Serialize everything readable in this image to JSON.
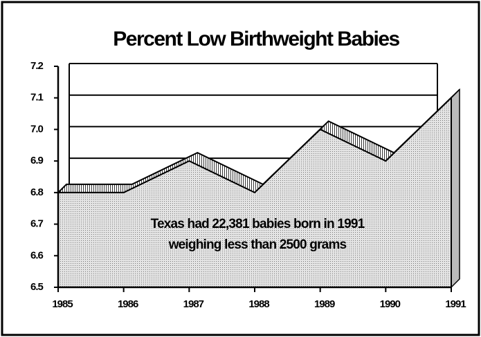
{
  "chart_data": {
    "type": "area3d",
    "title": "Percent Low Birthweight Babies",
    "annotation": [
      "Texas had 22,381 babies born in 1991",
      "weighing less than 2500 grams"
    ],
    "categories": [
      "1985",
      "1986",
      "1987",
      "1988",
      "1989",
      "1990",
      "1991"
    ],
    "values": [
      6.8,
      6.8,
      6.9,
      6.8,
      7.0,
      6.9,
      7.1
    ],
    "ylim": [
      6.5,
      7.2
    ],
    "yticks": [
      6.5,
      6.6,
      6.7,
      6.8,
      6.9,
      {
        "value": 7,
        "label": "7.0"
      },
      7.1,
      7.2
    ],
    "grid": true
  }
}
